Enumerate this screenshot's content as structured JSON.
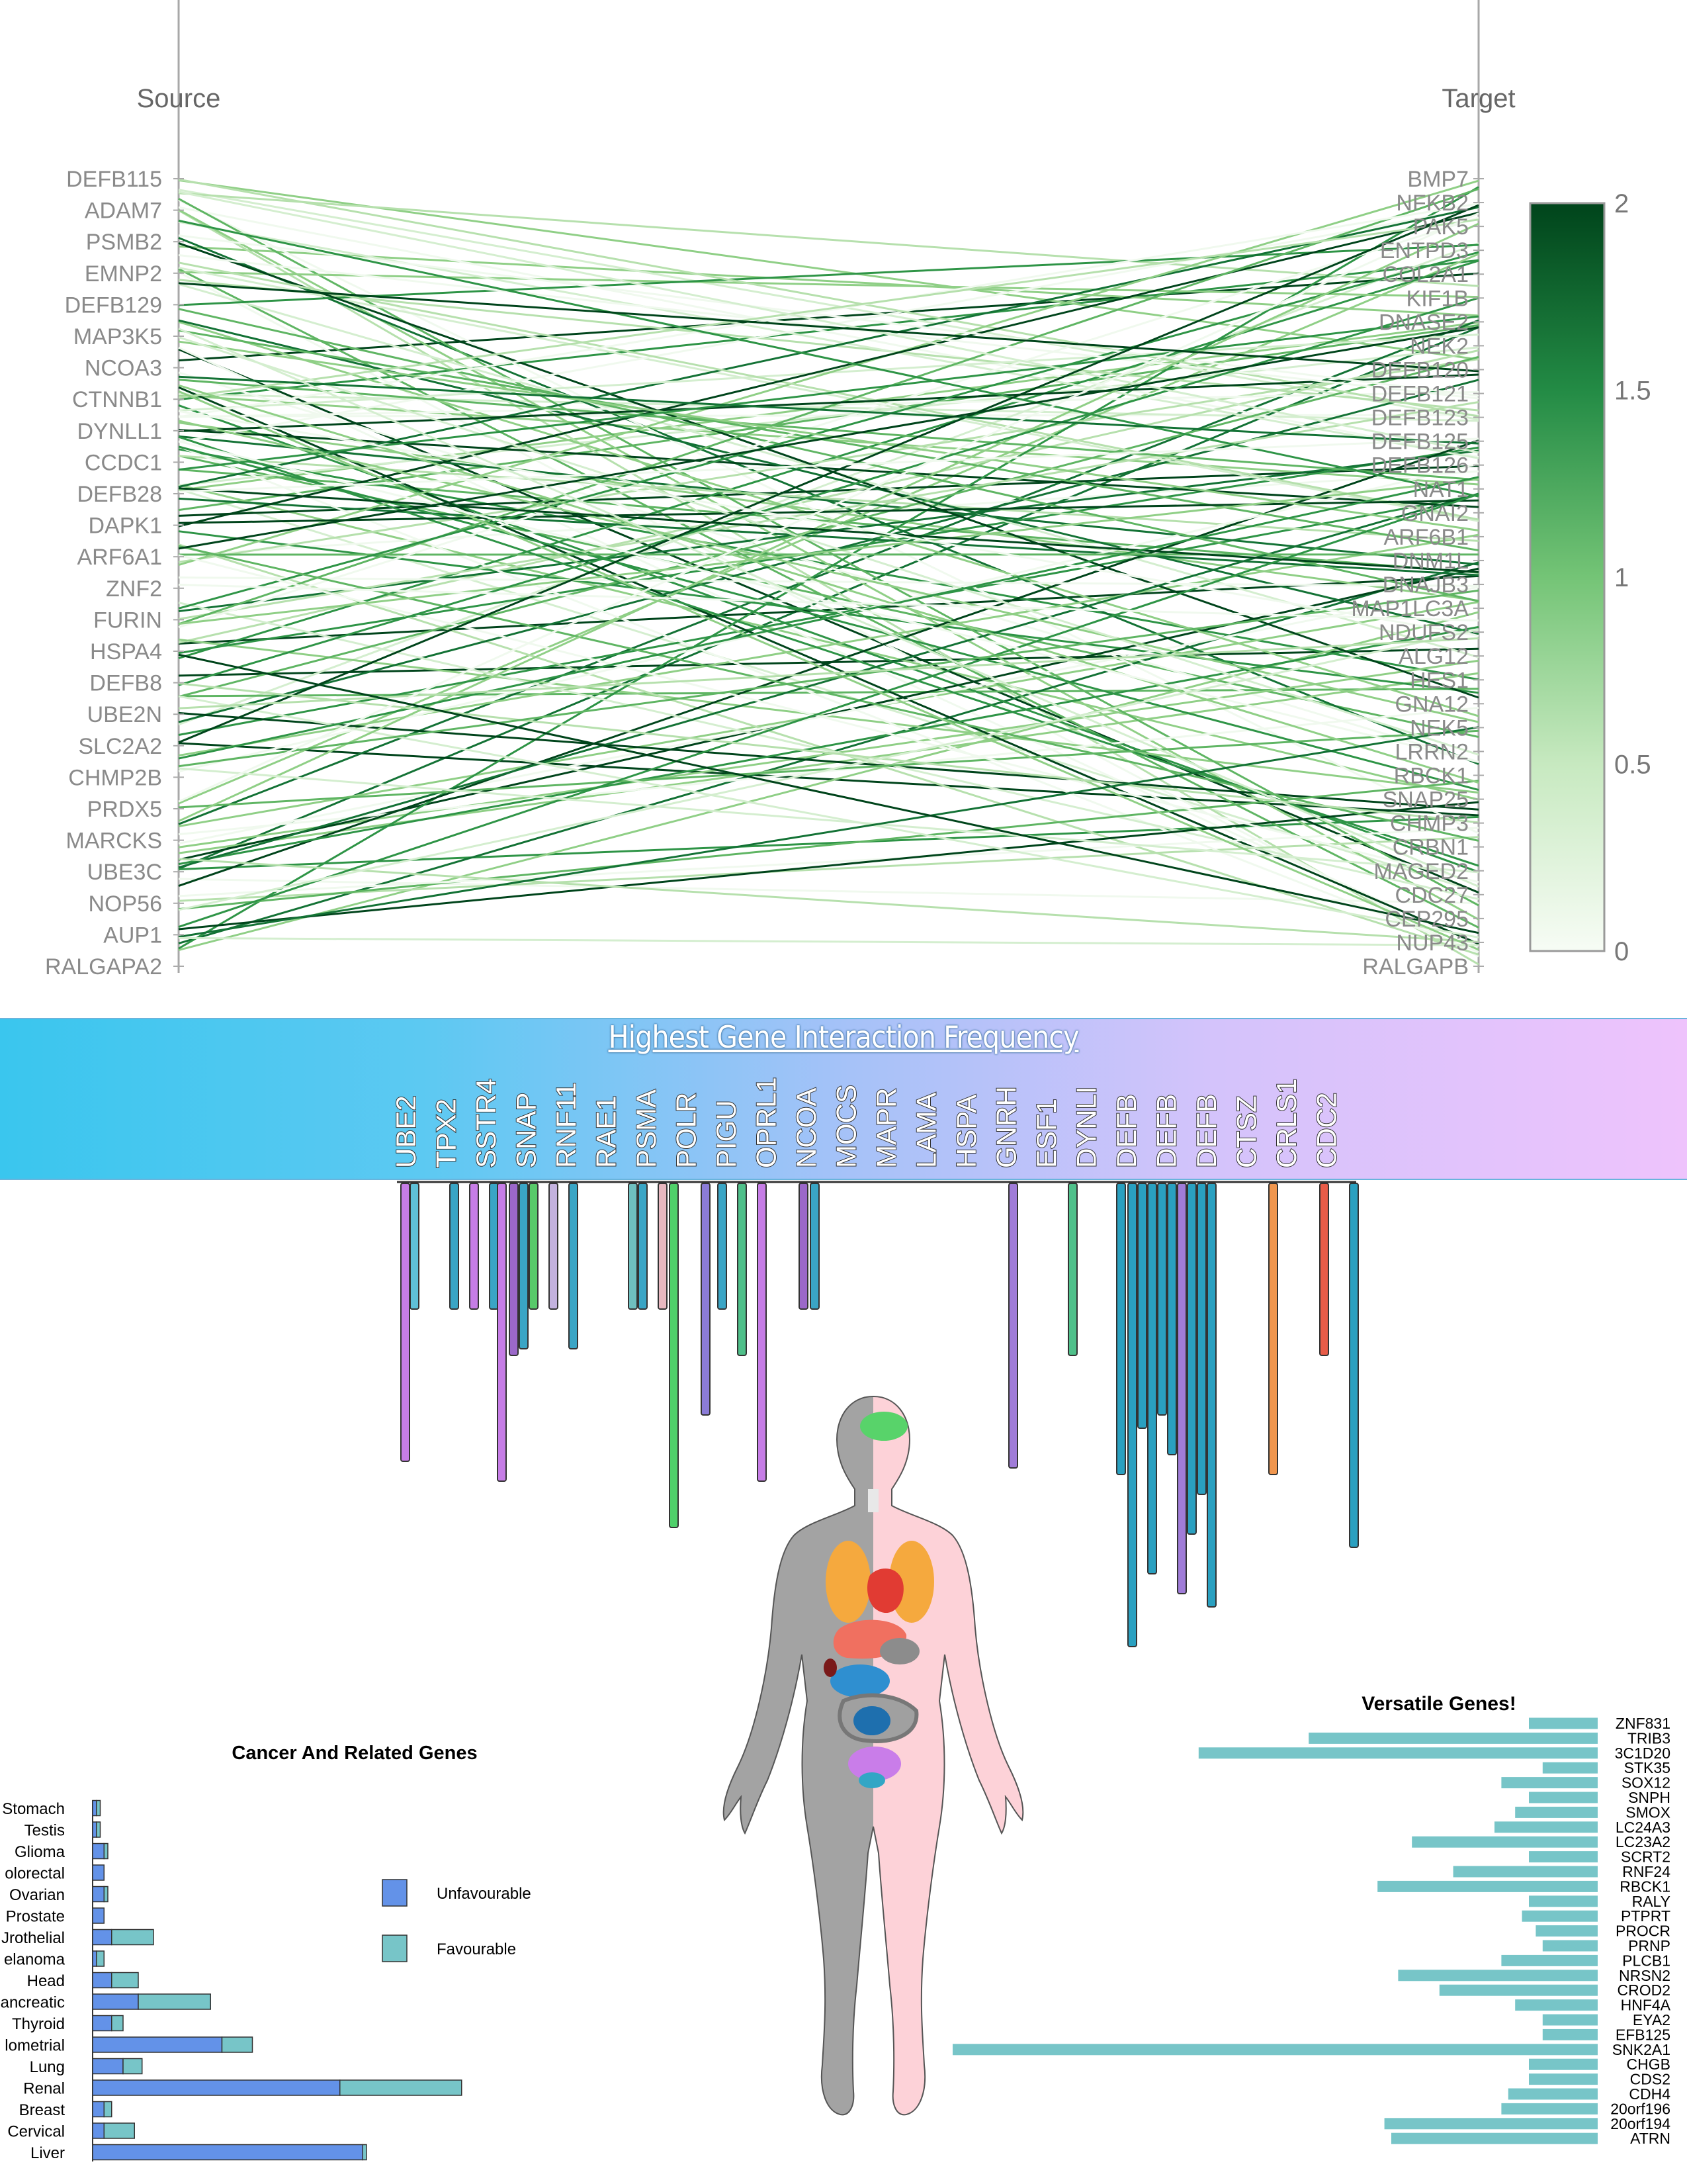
{
  "parallel_plot": {
    "left_axis_label": "Source",
    "right_axis_label": "Target",
    "source_ticks": [
      "DEFB115",
      "ADAM7",
      "PSMB2",
      "EMNP2",
      "DEFB129",
      "MAP3K5",
      "NCOA3",
      "CTNNB1",
      "DYNLL1",
      "CCDC1",
      "DEFB28",
      "DAPK1",
      "ARF6A1",
      "ZNF2",
      "FURIN",
      "HSPA4",
      "DEFB8",
      "UBE2N",
      "SLC2A2",
      "CHMP2B",
      "PRDX5",
      "MARCKS",
      "UBE3C",
      "NOP56",
      "AUP1",
      "RALGAPA2"
    ],
    "target_ticks": [
      "BMP7",
      "NFKB2",
      "PAK5",
      "ENTPD3",
      "COL2A1",
      "KIF1B",
      "DNASE2",
      "NEK2",
      "DEFB120",
      "DEFB121",
      "DEFB123",
      "DEFB125",
      "DEFB126",
      "NAT1",
      "GNAI2",
      "ARF6B1",
      "DNM1L",
      "DNAJB3",
      "MAP1LC3A",
      "NDUFS2",
      "ALG12",
      "HES1",
      "GNA12",
      "NEK5",
      "LRRN2",
      "RBCK1",
      "SNAP25",
      "CHMP3",
      "CRBN1",
      "MAGED2",
      "CDC27",
      "CEP295",
      "NUP43",
      "RALGAPB"
    ],
    "colorbar": {
      "ticks": [
        "0",
        "0.5",
        "1",
        "1.5",
        "2"
      ],
      "min": 0,
      "max": 2,
      "color_low": "#f7fcf5",
      "color_high": "#00441b"
    }
  },
  "banner": {
    "title": "Highest Gene Interaction Frequency",
    "genes": [
      "UBE2",
      "TPX2",
      "SSTR4",
      "SNAP",
      "RNF11",
      "RAE1",
      "PSMA",
      "POLR",
      "PIGU",
      "OPRL1",
      "NCOA",
      "MOCS",
      "MAPR",
      "LAMA",
      "HSPA",
      "GNRH",
      "ESF1",
      "DYNLI",
      "DEFB",
      "DEFB",
      "DEFB",
      "CTSZ",
      "CRLS1",
      "CDC2"
    ]
  },
  "cancer_chart": {
    "title": "Cancer And Related Genes",
    "legend": [
      {
        "label": "Unfavourable",
        "color": "#6392e8"
      },
      {
        "label": "Favourable",
        "color": "#77c5c8"
      }
    ],
    "chart_data": {
      "type": "bar",
      "stacked": true,
      "orientation": "horizontal",
      "categories": [
        "Stomach",
        "Testis",
        "Glioma",
        "olorectal",
        "Ovarian",
        "Prostate",
        "Jrothelial",
        "elanoma",
        "Head",
        "ancreatic",
        "Thyroid",
        "lometrial",
        "Lung",
        "Renal",
        "Breast",
        "Cervical",
        "Liver"
      ],
      "series": [
        {
          "name": "Unfavourable",
          "values": [
            1,
            1,
            3,
            3,
            3,
            3,
            5,
            1,
            5,
            12,
            5,
            34,
            8,
            65,
            3,
            3,
            71
          ]
        },
        {
          "name": "Favourable",
          "values": [
            1,
            1,
            1,
            0,
            1,
            0,
            11,
            2,
            7,
            19,
            3,
            8,
            5,
            32,
            2,
            8,
            1
          ]
        }
      ]
    }
  },
  "versatile_chart": {
    "title": "Versatile Genes!",
    "chart_data": {
      "type": "bar",
      "orientation": "horizontal",
      "categories": [
        "ZNF831",
        "TRIB3",
        "3C1D20",
        "STK35",
        "SOX12",
        "SNPH",
        "SMOX",
        "LC24A3",
        "LC23A2",
        "SCRT2",
        "RNF24",
        "RBCK1",
        "RALY",
        "PTPRT",
        "PROCR",
        "PRNP",
        "PLCB1",
        "NRSN2",
        "CROD2",
        "HNF4A",
        "EYA2",
        "EFB125",
        "SNK2A1",
        "CHGB",
        "CDS2",
        "CDH4",
        "20orf196",
        "20orf194",
        "ATRN"
      ],
      "values": [
        10,
        42,
        58,
        8,
        14,
        10,
        12,
        15,
        27,
        10,
        21,
        32,
        10,
        11,
        9,
        8,
        14,
        29,
        23,
        12,
        8,
        8,
        98,
        10,
        10,
        13,
        14,
        31,
        30
      ],
      "color": "#77c5c8"
    }
  }
}
